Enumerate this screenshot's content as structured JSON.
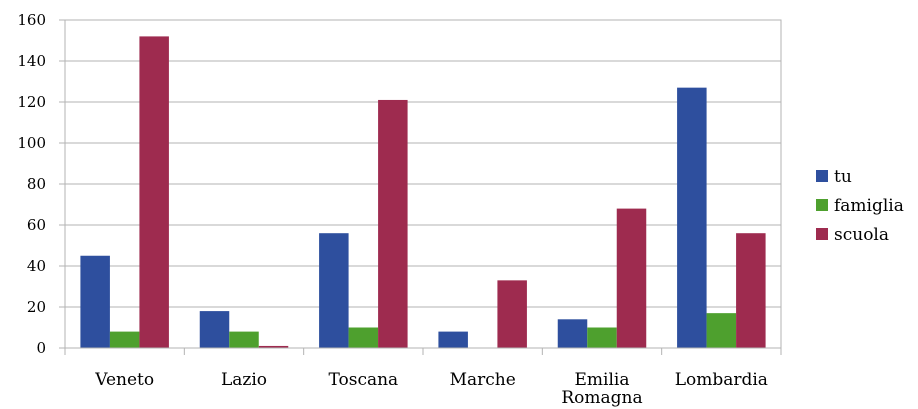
{
  "chart_data": {
    "type": "bar",
    "title": "",
    "xlabel": "",
    "ylabel": "",
    "categories": [
      [
        "Veneto"
      ],
      [
        "Lazio"
      ],
      [
        "Toscana"
      ],
      [
        "Marche"
      ],
      [
        "Emilia",
        "Romagna"
      ],
      [
        "Lombardia"
      ]
    ],
    "series": [
      {
        "name": "tu",
        "color": "#2e4f9e",
        "values": [
          45,
          18,
          56,
          8,
          14,
          127
        ]
      },
      {
        "name": "famiglia",
        "color": "#4ea02e",
        "values": [
          8,
          8,
          10,
          0,
          10,
          17
        ]
      },
      {
        "name": "scuola",
        "color": "#9e2b4f",
        "values": [
          152,
          1,
          121,
          33,
          68,
          56
        ]
      }
    ],
    "ylim": [
      0,
      160
    ],
    "yticks": [
      0,
      20,
      40,
      60,
      80,
      100,
      120,
      140,
      160
    ],
    "grid": true,
    "legend_position": "right"
  }
}
